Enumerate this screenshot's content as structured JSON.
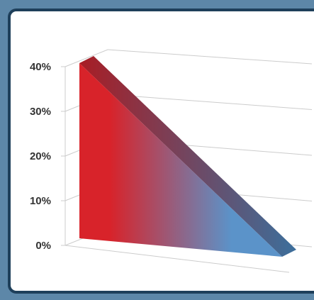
{
  "chart_data": {
    "type": "area",
    "style": "3d",
    "x": [
      0,
      1
    ],
    "values": [
      38,
      0
    ],
    "ylim": [
      0,
      40
    ],
    "yticks": [
      "0%",
      "10%",
      "20%",
      "30%",
      "40%"
    ],
    "title": "",
    "xlabel": "",
    "ylabel": "",
    "grid": true,
    "legend": "none",
    "colors": {
      "start": "#d8232a",
      "end": "#5b93c9",
      "top_start": "#a81d24",
      "top_end": "#3c6f9c",
      "grid": "#cccccc",
      "frame_border": "#1e3f5a",
      "frame_bg": "#5d87a8"
    }
  }
}
